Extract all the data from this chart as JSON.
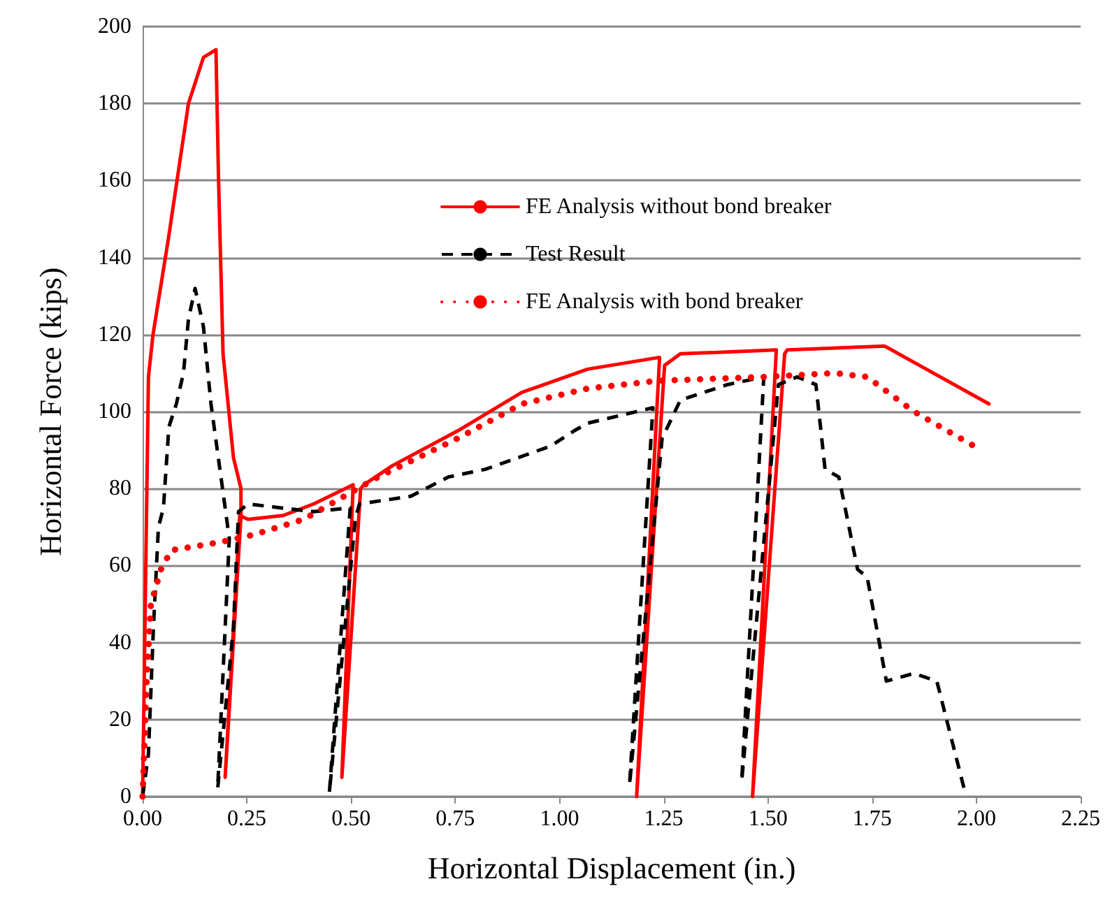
{
  "chart_data": {
    "type": "line",
    "xlabel": "Horizontal Displacement (in.)",
    "ylabel": "Horizontal Force (kips)",
    "xlim": [
      0,
      2.25
    ],
    "xticks": [
      {
        "value": 0,
        "label": "0.00"
      },
      {
        "value": 0.25,
        "label": "0.25"
      },
      {
        "value": 0.5,
        "label": "0.50"
      },
      {
        "value": 0.75,
        "label": "0.75"
      },
      {
        "value": 1,
        "label": "1.00"
      },
      {
        "value": 1.25,
        "label": "1.25"
      },
      {
        "value": 1.5,
        "label": "1.50"
      },
      {
        "value": 1.75,
        "label": "1.75"
      },
      {
        "value": 2,
        "label": "2.00"
      },
      {
        "value": 2.25,
        "label": "2.25"
      }
    ],
    "ylim": [
      0,
      200
    ],
    "yticks": [
      0,
      20,
      40,
      60,
      80,
      100,
      120,
      140,
      160,
      180,
      200
    ],
    "grid": "y",
    "legend": "top right",
    "marker": "none",
    "series": [
      {
        "name": "FE Analysis without bond breaker",
        "color": "#ff0000",
        "line_style": "solid",
        "x": [
          0,
          0.014,
          0.025,
          0.062,
          0.11,
          0.146,
          0.176,
          0.182,
          0.193,
          0.218,
          0.236,
          0.236,
          0.198,
          0.233,
          0.253,
          0.337,
          0.41,
          0.505,
          0.478,
          0.523,
          0.531,
          0.6,
          0.756,
          0.91,
          1.067,
          1.235,
          1.24,
          1.185,
          1.252,
          1.29,
          1.52,
          1.463,
          1.54,
          1.546,
          1.78,
          1.88,
          2.03
        ],
        "values": [
          0,
          109,
          120,
          145,
          180,
          192,
          194,
          161,
          115,
          88,
          80,
          73,
          5,
          73,
          72,
          73,
          76,
          81,
          5,
          80,
          81,
          86,
          95,
          105,
          111,
          114,
          114,
          0,
          112,
          115,
          116,
          0,
          115,
          116,
          117,
          111,
          102
        ]
      },
      {
        "name": "Test Result",
        "color": "#000000",
        "line_style": "dashed",
        "x": [
          0,
          0.014,
          0.026,
          0.038,
          0.05,
          0.063,
          0.081,
          0.098,
          0.11,
          0.126,
          0.146,
          0.164,
          0.188,
          0.208,
          0.18,
          0.218,
          0.23,
          0.253,
          0.41,
          0.498,
          0.448,
          0.51,
          0.52,
          0.643,
          0.733,
          0.822,
          0.978,
          1.035,
          1.068,
          1.224,
          1.168,
          1.246,
          1.29,
          1.403,
          1.49,
          1.437,
          1.525,
          1.57,
          1.615,
          1.637,
          1.67,
          1.715,
          1.738,
          1.784,
          1.85,
          1.905,
          1.973
        ],
        "values": [
          0,
          11,
          44,
          70,
          75,
          96,
          102,
          110,
          124,
          132,
          122,
          102,
          83,
          67,
          2,
          44,
          74,
          76,
          74,
          75,
          1,
          72,
          76,
          78,
          83,
          85,
          91,
          95,
          97,
          101,
          3,
          93,
          103,
          107,
          109,
          4,
          107,
          109,
          107,
          85,
          83,
          59,
          57,
          30,
          32,
          30,
          1
        ]
      },
      {
        "name": "FE Analysis with bond breaker",
        "color": "#ff0000",
        "line_style": "dotted",
        "x": [
          0,
          0.01,
          0.02,
          0.044,
          0.069,
          0.182,
          0.266,
          0.386,
          0.5,
          0.565,
          0.755,
          0.91,
          1.068,
          1.236,
          1.49,
          1.66,
          1.738,
          1.85,
          1.995
        ],
        "values": [
          0,
          31,
          50,
          59,
          64,
          66,
          68,
          72,
          79,
          83,
          93,
          102,
          106,
          108,
          109,
          110,
          109,
          100,
          91
        ]
      }
    ]
  }
}
